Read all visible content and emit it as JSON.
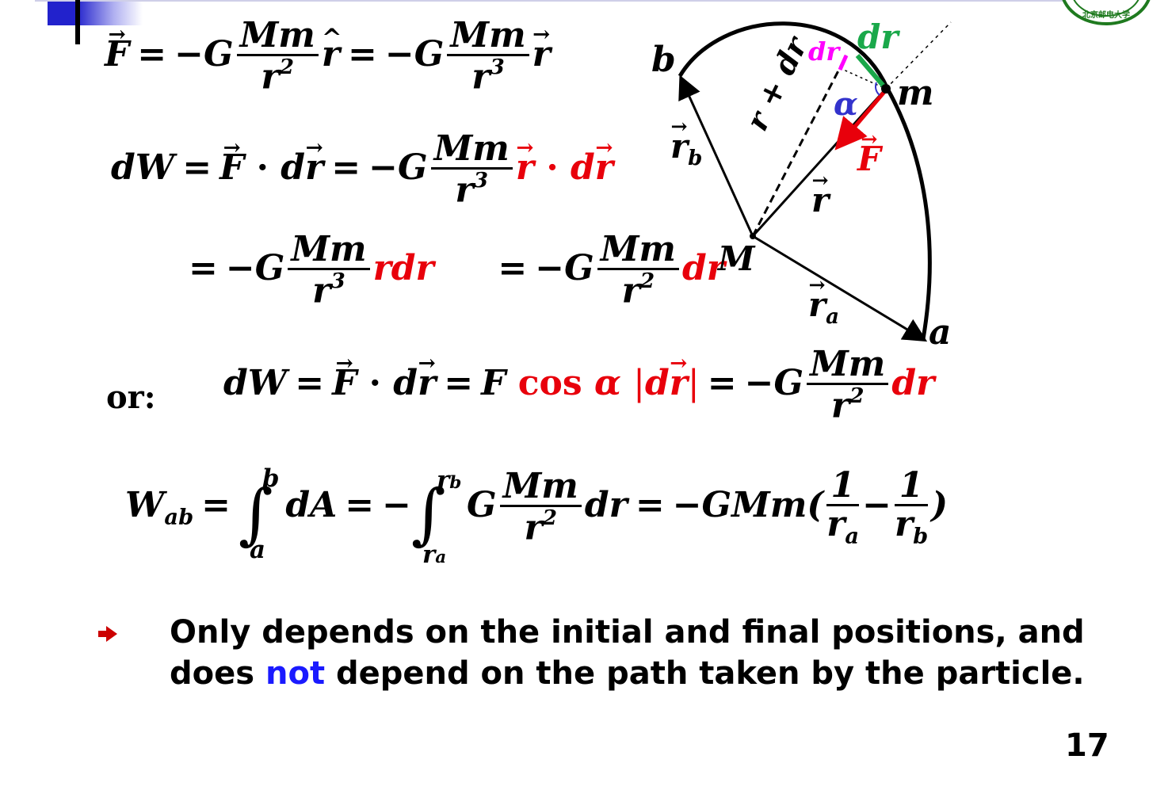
{
  "header": {
    "accent_color": "#3333cc"
  },
  "equations": {
    "force": "F = −G (Mm/r²) r̂ = −G (Mm/r³) r",
    "dW_line1": "dW = F · dr = −G (Mm/r³) r · dr",
    "dW_line2": "= −G (Mm/r³) r dr   = −G (Mm/r²) dr",
    "or_label": "or:",
    "dW_alt": "dW = F · dr = F cos α |dr| = −G (Mm/r²) dr",
    "work": "W_ab = ∫_a^b dA = −∫_{r_a}^{r_b} G (Mm/r²) dr = −GMm(1/r_a − 1/r_b)"
  },
  "diagram": {
    "labels": {
      "b": "b",
      "m": "m",
      "M": "M",
      "a": "a",
      "r_b": "r",
      "r_b_sub": "b",
      "r_a": "r",
      "r_a_sub": "a",
      "r": "r",
      "F": "F",
      "alpha": "α",
      "dr_vec": "dr",
      "dr_scalar": "dr",
      "r_plus_dr": "r + dr"
    },
    "colors": {
      "force": "#e8000b",
      "dr_vec": "#1aa84a",
      "dr_scalar": "#ff00ff",
      "alpha": "#3333cc"
    }
  },
  "bullet": {
    "icon": "arrow-bullet-icon",
    "line1": "Only depends on the initial and final positions, and",
    "line2_pre": "does ",
    "line2_highlight": "not",
    "line2_post": " depend on the path taken by the particle."
  },
  "page_number": "17",
  "logo": {
    "icon": "university-seal-icon",
    "text": "北京邮电大学"
  }
}
